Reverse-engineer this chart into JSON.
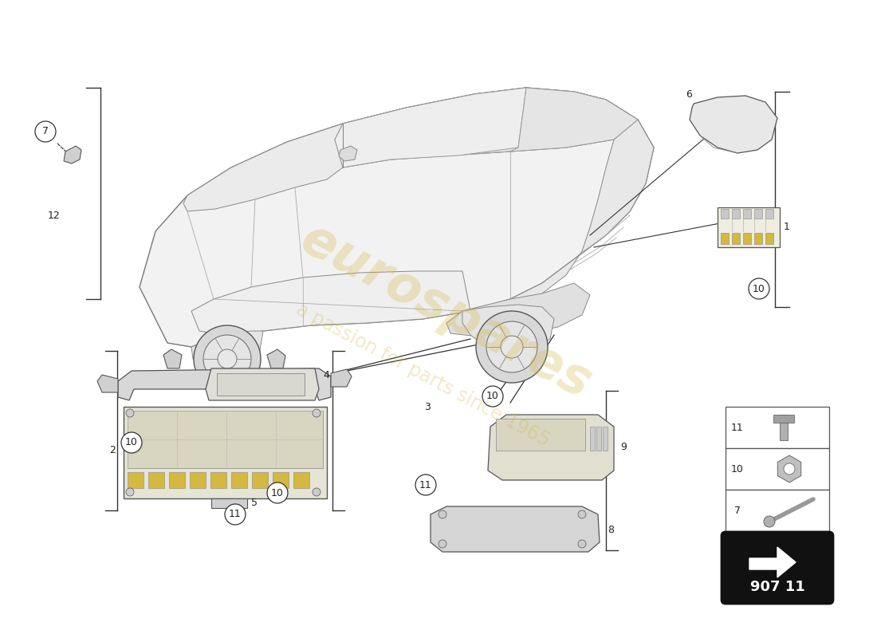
{
  "bg_color": "#ffffff",
  "line_color": "#333333",
  "part_number": "907 11",
  "watermark_color": "#d4b84a",
  "lw": 0.8,
  "car_color": "#f5f5f5",
  "car_edge": "#555555"
}
